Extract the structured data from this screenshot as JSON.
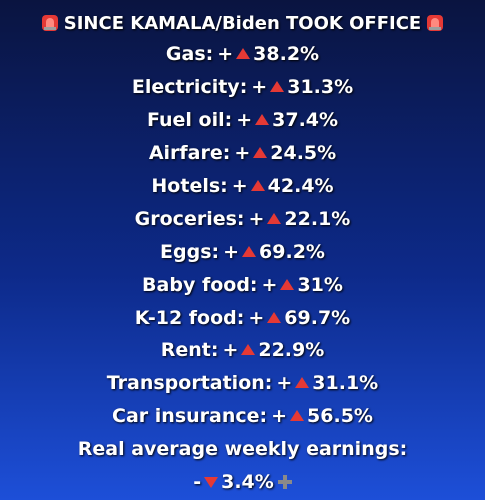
{
  "title": "SINCE KAMALA/Biden TOOK OFFICE",
  "items": [
    {
      "label": "Gas:",
      "sign": "+",
      "value": "38.2%"
    },
    {
      "label": "Electricity:",
      "sign": "+",
      "value": "31.3%"
    },
    {
      "label": "Fuel oil:",
      "sign": "+",
      "value": "37.4%"
    },
    {
      "label": "Airfare:",
      "sign": "+",
      "value": "24.5%"
    },
    {
      "label": "Hotels:",
      "sign": "+",
      "value": "42.4%"
    },
    {
      "label": "Groceries:",
      "sign": "+",
      "value": "22.1%"
    },
    {
      "label": "Eggs:",
      "sign": "+",
      "value": "69.2%"
    },
    {
      "label": "Baby food:",
      "sign": "+",
      "value": "31%"
    },
    {
      "label": "K-12 food:",
      "sign": "+",
      "value": "69.7%"
    },
    {
      "label": "Rent:",
      "sign": "+",
      "value": "22.9%"
    },
    {
      "label": "Transportation:",
      "sign": "+",
      "value": "31.1%"
    },
    {
      "label": "Car insurance:",
      "sign": "+",
      "value": "56.5%"
    }
  ],
  "earnings": {
    "label": "Real average weekly earnings:",
    "sign": "-",
    "value": "3.4%"
  }
}
